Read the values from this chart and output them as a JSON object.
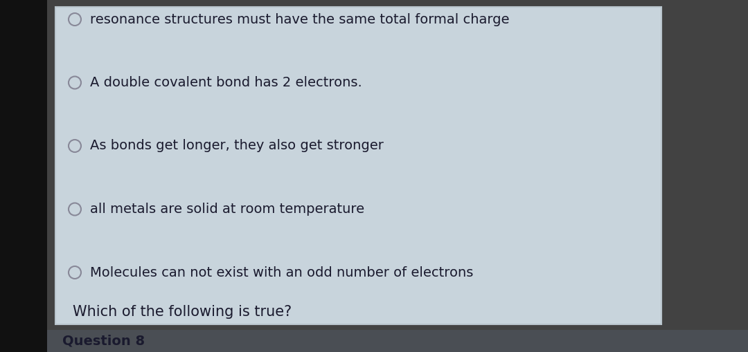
{
  "title": "Question 8",
  "question": "Which of the following is true?",
  "options": [
    "Molecules can not exist with an odd number of electrons",
    "all metals are solid at room temperature",
    "As bonds get longer, they also get stronger",
    "A double covalent bond has 2 electrons.",
    "resonance structures must have the same total formal charge"
  ],
  "bg_outer_left": "#1a1a1a",
  "bg_outer_right": "#3a3a3a",
  "bg_header": "#4a4e54",
  "bg_card": "#c8d4dc",
  "card_border": "#c0c8d0",
  "title_color": "#1a1a2e",
  "question_color": "#1a1a2e",
  "option_color": "#1a1a2e",
  "circle_edge_color": "#888898",
  "title_fontsize": 14,
  "question_fontsize": 15,
  "option_fontsize": 14,
  "figwidth": 10.8,
  "figheight": 5.09
}
